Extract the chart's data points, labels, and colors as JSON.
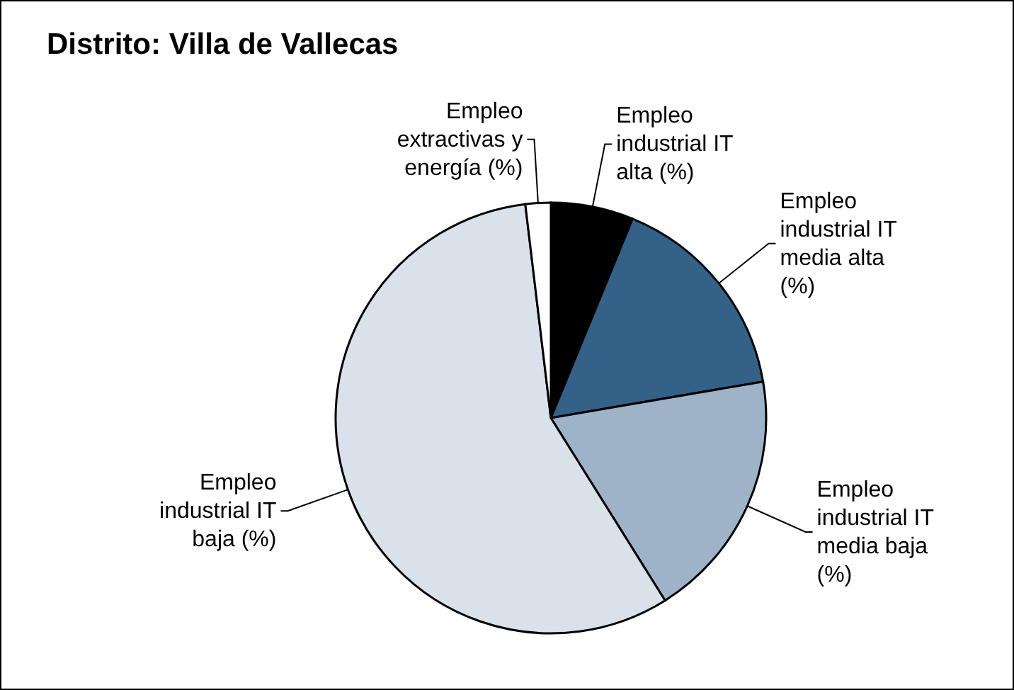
{
  "chart_data": {
    "type": "pie",
    "title": "Distrito: Villa de Vallecas",
    "categories": [
      "Empleo industrial IT alta (%)",
      "Empleo industrial IT media alta (%)",
      "Empleo industrial IT media baja (%)",
      "Empleo industrial IT baja (%)",
      "Empleo extractivas y energía (%)"
    ],
    "values": [
      6.2,
      16.1,
      18.8,
      57.0,
      1.9
    ],
    "colors": [
      "#000000",
      "#336188",
      "#9fb3c8",
      "#d9e1ea",
      "#ffffff"
    ]
  }
}
